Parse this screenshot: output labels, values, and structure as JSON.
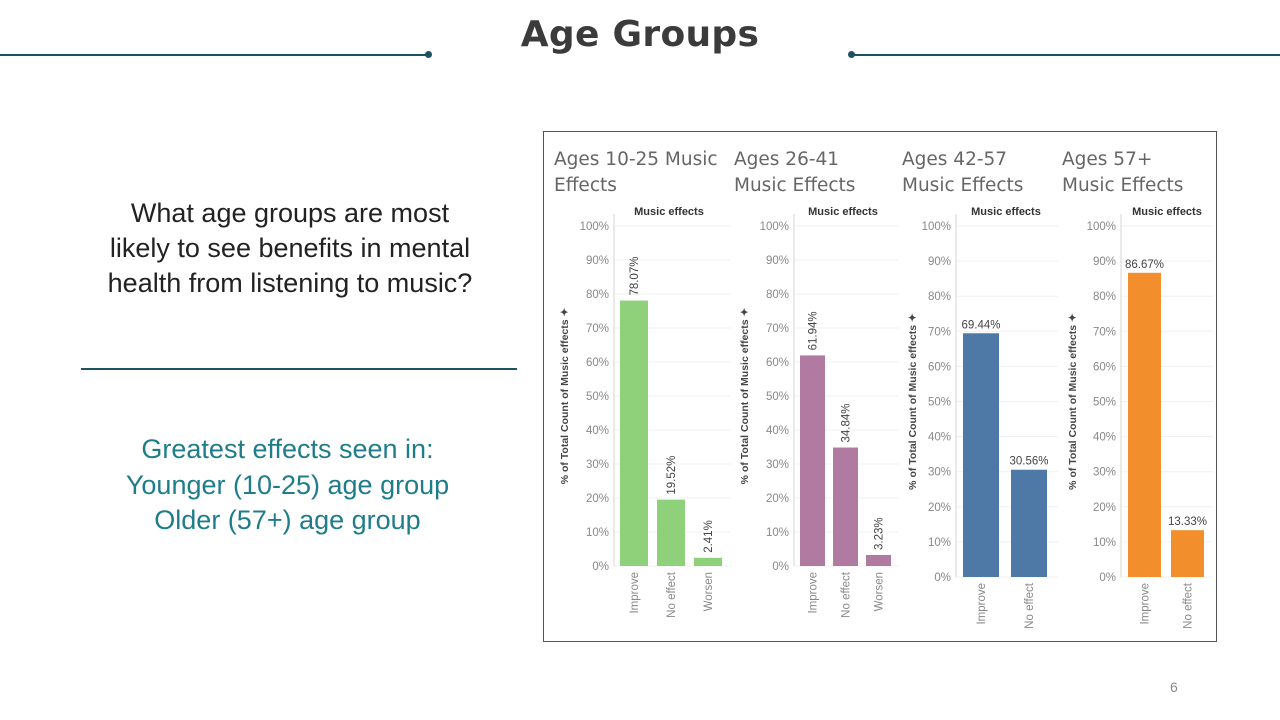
{
  "slide": {
    "title": "Age Groups",
    "question": [
      "What age groups are most",
      "likely to see benefits in mental",
      "health from listening to music?"
    ],
    "findings": [
      "Greatest effects seen in:",
      "Younger (10-25) age group",
      "Older (57+) age group"
    ],
    "page_number": "6"
  },
  "chart_data": [
    {
      "type": "bar",
      "title": [
        "Ages 10-25 Music",
        "Effects"
      ],
      "legend_title": "Music effects",
      "ylabel": "% of Total Count of Music effects",
      "ylim": [
        0,
        100
      ],
      "yticks": [
        "0%",
        "10%",
        "20%",
        "30%",
        "40%",
        "50%",
        "60%",
        "70%",
        "80%",
        "90%",
        "100%"
      ],
      "categories": [
        "Improve",
        "No effect",
        "Worsen"
      ],
      "values": [
        78.07,
        19.52,
        2.41
      ],
      "labels": [
        "78.07%",
        "19.52%",
        "2.41%"
      ],
      "label_orientation": "vertical",
      "color": "#8fd17a"
    },
    {
      "type": "bar",
      "title": [
        "Ages 26-41",
        "Music Effects"
      ],
      "legend_title": "Music effects",
      "ylabel": "% of Total Count of Music effects",
      "ylim": [
        0,
        100
      ],
      "yticks": [
        "0%",
        "10%",
        "20%",
        "30%",
        "40%",
        "50%",
        "60%",
        "70%",
        "80%",
        "90%",
        "100%"
      ],
      "categories": [
        "Improve",
        "No effect",
        "Worsen"
      ],
      "values": [
        61.94,
        34.84,
        3.23
      ],
      "labels": [
        "61.94%",
        "34.84%",
        "3.23%"
      ],
      "label_orientation": "vertical",
      "color": "#b07aa1"
    },
    {
      "type": "bar",
      "title": [
        "Ages 42-57",
        "Music Effects"
      ],
      "legend_title": "Music effects",
      "ylabel": "% of Total Count of Music effects",
      "ylim": [
        0,
        100
      ],
      "yticks": [
        "0%",
        "10%",
        "20%",
        "30%",
        "40%",
        "50%",
        "60%",
        "70%",
        "80%",
        "90%",
        "100%"
      ],
      "categories": [
        "Improve",
        "No effect"
      ],
      "values": [
        69.44,
        30.56
      ],
      "labels": [
        "69.44%",
        "30.56%"
      ],
      "label_orientation": "horizontal",
      "color": "#4e79a7"
    },
    {
      "type": "bar",
      "title": [
        "Ages 57+",
        "Music Effects"
      ],
      "legend_title": "Music effects",
      "ylabel": "% of Total Count of Music effects",
      "ylim": [
        0,
        100
      ],
      "yticks": [
        "0%",
        "10%",
        "20%",
        "30%",
        "40%",
        "50%",
        "60%",
        "70%",
        "80%",
        "90%",
        "100%"
      ],
      "categories": [
        "Improve",
        "No effect"
      ],
      "values": [
        86.67,
        13.33
      ],
      "labels": [
        "86.67%",
        "13.33%"
      ],
      "label_orientation": "horizontal",
      "color": "#f28e2b"
    }
  ]
}
